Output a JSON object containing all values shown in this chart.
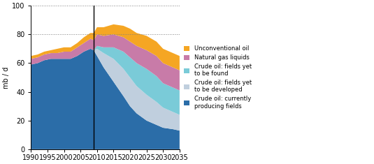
{
  "years": [
    1990,
    1992,
    1994,
    1996,
    1998,
    2000,
    2002,
    2004,
    2006,
    2008,
    2009,
    2010,
    2012,
    2015,
    2018,
    2020,
    2022,
    2025,
    2028,
    2030,
    2033,
    2035
  ],
  "currently_producing": [
    59,
    60,
    62,
    63,
    63,
    63,
    63,
    65,
    68,
    70,
    69,
    65,
    57,
    47,
    37,
    30,
    25,
    20,
    17,
    15,
    14,
    13
  ],
  "to_be_developed": [
    0,
    0,
    0,
    0,
    0,
    0,
    0,
    0,
    0,
    0,
    0,
    5,
    10,
    16,
    19,
    20,
    19,
    18,
    16,
    14,
    12,
    11
  ],
  "to_be_found": [
    0,
    0,
    0,
    0,
    0,
    0,
    0,
    0,
    0,
    0,
    0,
    2,
    4,
    8,
    12,
    14,
    16,
    18,
    18,
    17,
    17,
    17
  ],
  "natural_gas_liquids": [
    4,
    4,
    4,
    4,
    4,
    5,
    5,
    6,
    6,
    7,
    7,
    8,
    8,
    9,
    10,
    11,
    12,
    13,
    14,
    14,
    14,
    14
  ],
  "unconventional_oil": [
    2,
    2,
    2,
    2,
    3,
    3,
    3,
    3,
    4,
    4,
    5,
    5,
    6,
    7,
    8,
    9,
    9,
    10,
    10,
    10,
    10,
    10
  ],
  "colors": {
    "currently_producing": "#2B6DA8",
    "to_be_developed": "#C0CFDE",
    "to_be_found": "#7ACBD8",
    "natural_gas_liquids": "#C87BA8",
    "unconventional_oil": "#F5A623"
  },
  "legend_labels": [
    "Unconventional oil",
    "Natural gas liquids",
    "Crude oil: fields yet\nto be found",
    "Crude oil: fields yet\nto be developed",
    "Crude oil: currently\nproducing fields"
  ],
  "ylabel": "mb / d",
  "ylim": [
    0,
    100
  ],
  "xlim": [
    1990,
    2035
  ],
  "yticks": [
    0,
    20,
    40,
    60,
    80,
    100
  ],
  "xticks": [
    1990,
    1995,
    2000,
    2005,
    2010,
    2015,
    2020,
    2025,
    2030,
    2035
  ],
  "vline_x": 2009,
  "hline_y1": 80,
  "hline_y2": 100,
  "bg_color": "#FFFFFF"
}
